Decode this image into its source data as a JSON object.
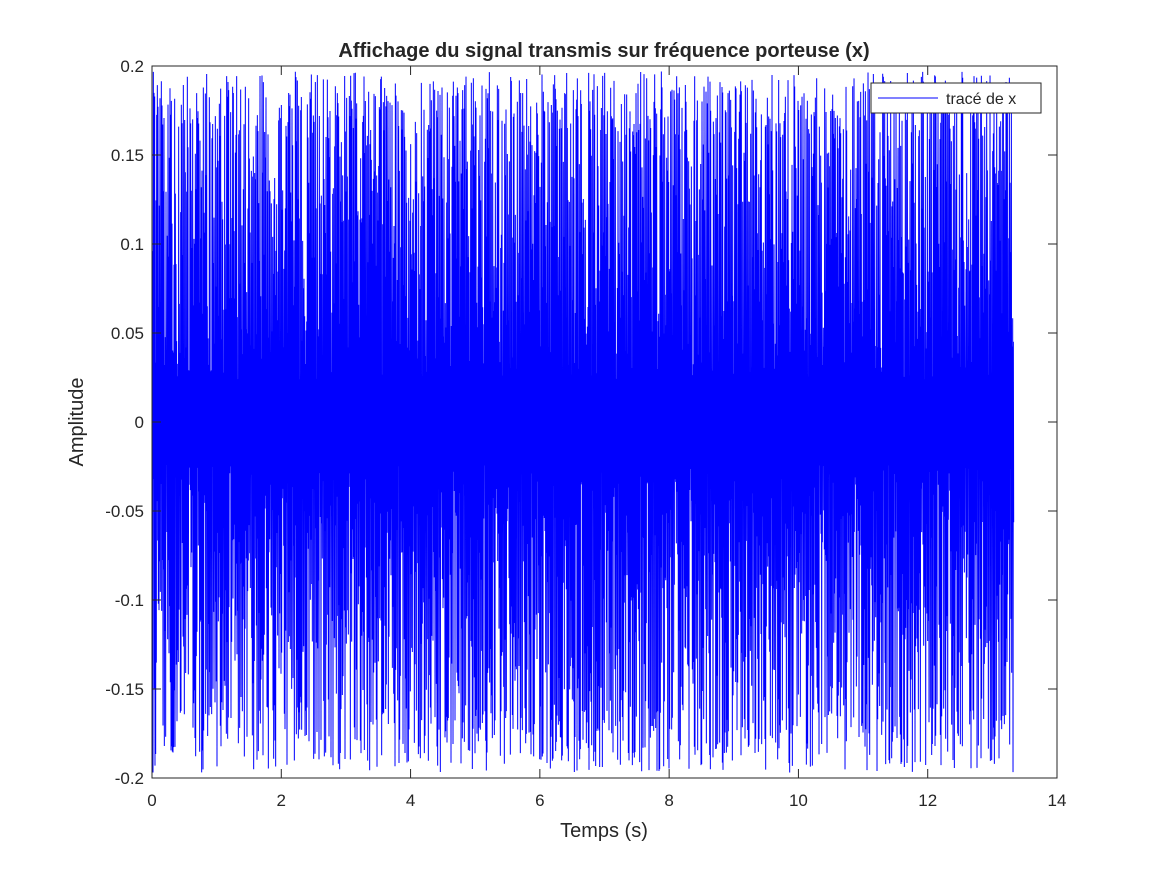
{
  "chart_data": {
    "type": "line",
    "title": "Affichage du signal transmis sur fréquence porteuse (x)",
    "xlabel": "Temps (s)",
    "ylabel": "Amplitude",
    "xlim": [
      0,
      14
    ],
    "ylim": [
      -0.2,
      0.2
    ],
    "xticks": [
      0,
      2,
      4,
      6,
      8,
      10,
      12,
      14
    ],
    "xtick_labels": [
      "0",
      "2",
      "4",
      "6",
      "8",
      "10",
      "12",
      "14"
    ],
    "yticks": [
      0.2,
      0.15,
      0.1,
      0.05,
      0,
      -0.05,
      -0.1,
      -0.15,
      -0.2
    ],
    "ytick_labels": [
      "0.2",
      "0.15",
      "0.1",
      "0.05",
      "0",
      "-0.05",
      "-0.1",
      "-0.15",
      "-0.2"
    ],
    "grid": false,
    "legend": {
      "position": "top-right",
      "entries": [
        "tracé de x"
      ]
    },
    "series": [
      {
        "name": "tracé de x",
        "color": "#0000ff",
        "x_start": 0,
        "x_end": 13.33,
        "envelope_max": 0.197,
        "envelope_min": -0.197,
        "typical_peak": 0.16
      }
    ]
  }
}
